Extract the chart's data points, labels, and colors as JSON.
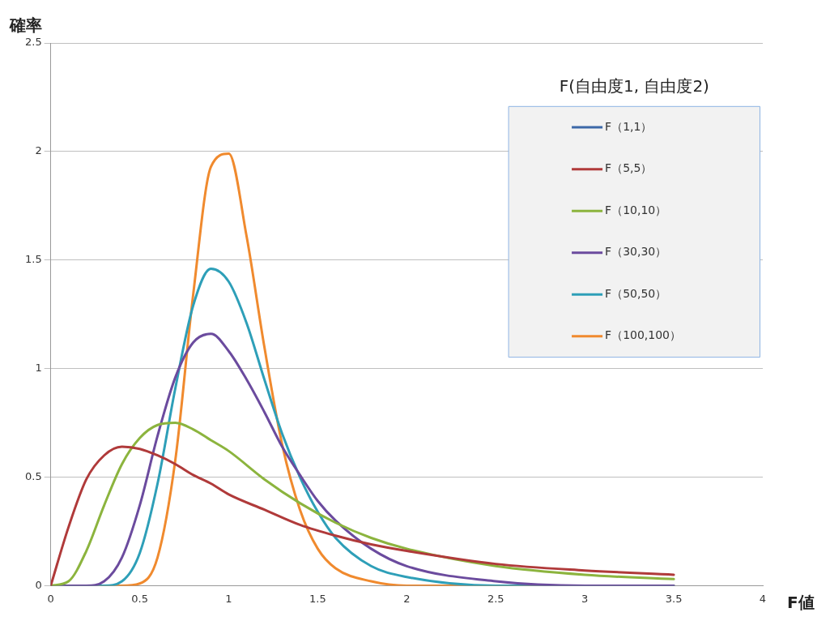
{
  "chart_data": {
    "type": "line",
    "xlabel": "F値",
    "ylabel": "確率",
    "legend_title": "F(自由度1, 自由度2)",
    "legend": "top right",
    "grid": "y",
    "marker": "none",
    "line_style": "solid",
    "xlim": [
      0,
      4
    ],
    "xticks": [
      0,
      0.5,
      1,
      1.5,
      2,
      2.5,
      3,
      3.5,
      4
    ],
    "ylim": [
      0,
      2.5
    ],
    "yticks": [
      0,
      0.5,
      1,
      1.5,
      2,
      2.5
    ],
    "series": [
      {
        "name": "F（1,1）",
        "color": "#3c68a8"
      },
      {
        "name": "F（5,5）",
        "color": "#b03a3a",
        "x": [
          0,
          0.1,
          0.2,
          0.3,
          0.4,
          0.5,
          0.6,
          0.7,
          0.8,
          0.9,
          1,
          1.2,
          1.4,
          1.6,
          1.8,
          2,
          2.5,
          3,
          3.5
        ],
        "values": [
          0,
          0.27,
          0.49,
          0.6,
          0.64,
          0.63,
          0.6,
          0.56,
          0.51,
          0.47,
          0.42,
          0.35,
          0.28,
          0.23,
          0.19,
          0.16,
          0.1,
          0.07,
          0.05
        ]
      },
      {
        "name": "F（10,10）",
        "color": "#8cb43e",
        "x": [
          0,
          0.1,
          0.2,
          0.3,
          0.4,
          0.5,
          0.6,
          0.7,
          0.8,
          0.9,
          1,
          1.2,
          1.4,
          1.6,
          1.8,
          2,
          2.5,
          3,
          3.5
        ],
        "values": [
          0,
          0.02,
          0.16,
          0.37,
          0.56,
          0.68,
          0.74,
          0.75,
          0.72,
          0.67,
          0.62,
          0.49,
          0.38,
          0.29,
          0.22,
          0.17,
          0.09,
          0.05,
          0.03
        ]
      },
      {
        "name": "F（30,30）",
        "color": "#6b4b9e",
        "x": [
          0,
          0.2,
          0.3,
          0.4,
          0.5,
          0.6,
          0.7,
          0.8,
          0.9,
          1,
          1.1,
          1.2,
          1.3,
          1.4,
          1.5,
          1.6,
          1.8,
          2,
          2.5,
          3,
          3.5
        ],
        "values": [
          0,
          0,
          0.02,
          0.13,
          0.37,
          0.69,
          0.96,
          1.12,
          1.16,
          1.08,
          0.95,
          0.8,
          0.64,
          0.51,
          0.39,
          0.3,
          0.17,
          0.09,
          0.02,
          0,
          0
        ]
      },
      {
        "name": "F（50,50）",
        "color": "#2e9fb8",
        "x": [
          0,
          0.3,
          0.4,
          0.5,
          0.6,
          0.7,
          0.8,
          0.9,
          1,
          1.1,
          1.2,
          1.3,
          1.4,
          1.5,
          1.6,
          1.8,
          2,
          2.5,
          3,
          3.5
        ],
        "values": [
          0,
          0,
          0.02,
          0.15,
          0.47,
          0.91,
          1.29,
          1.46,
          1.4,
          1.21,
          0.95,
          0.7,
          0.5,
          0.34,
          0.22,
          0.09,
          0.04,
          0,
          0,
          0
        ]
      },
      {
        "name": "F（100,100）",
        "color": "#f08a2e",
        "x": [
          0,
          0.4,
          0.5,
          0.6,
          0.7,
          0.8,
          0.9,
          1,
          1.1,
          1.2,
          1.3,
          1.4,
          1.5,
          1.6,
          1.8,
          2,
          2.5,
          3,
          3.5
        ],
        "values": [
          0,
          0,
          0.01,
          0.13,
          0.58,
          1.34,
          1.93,
          1.99,
          1.61,
          1.1,
          0.65,
          0.35,
          0.17,
          0.08,
          0.02,
          0,
          0,
          0,
          0
        ]
      }
    ]
  }
}
